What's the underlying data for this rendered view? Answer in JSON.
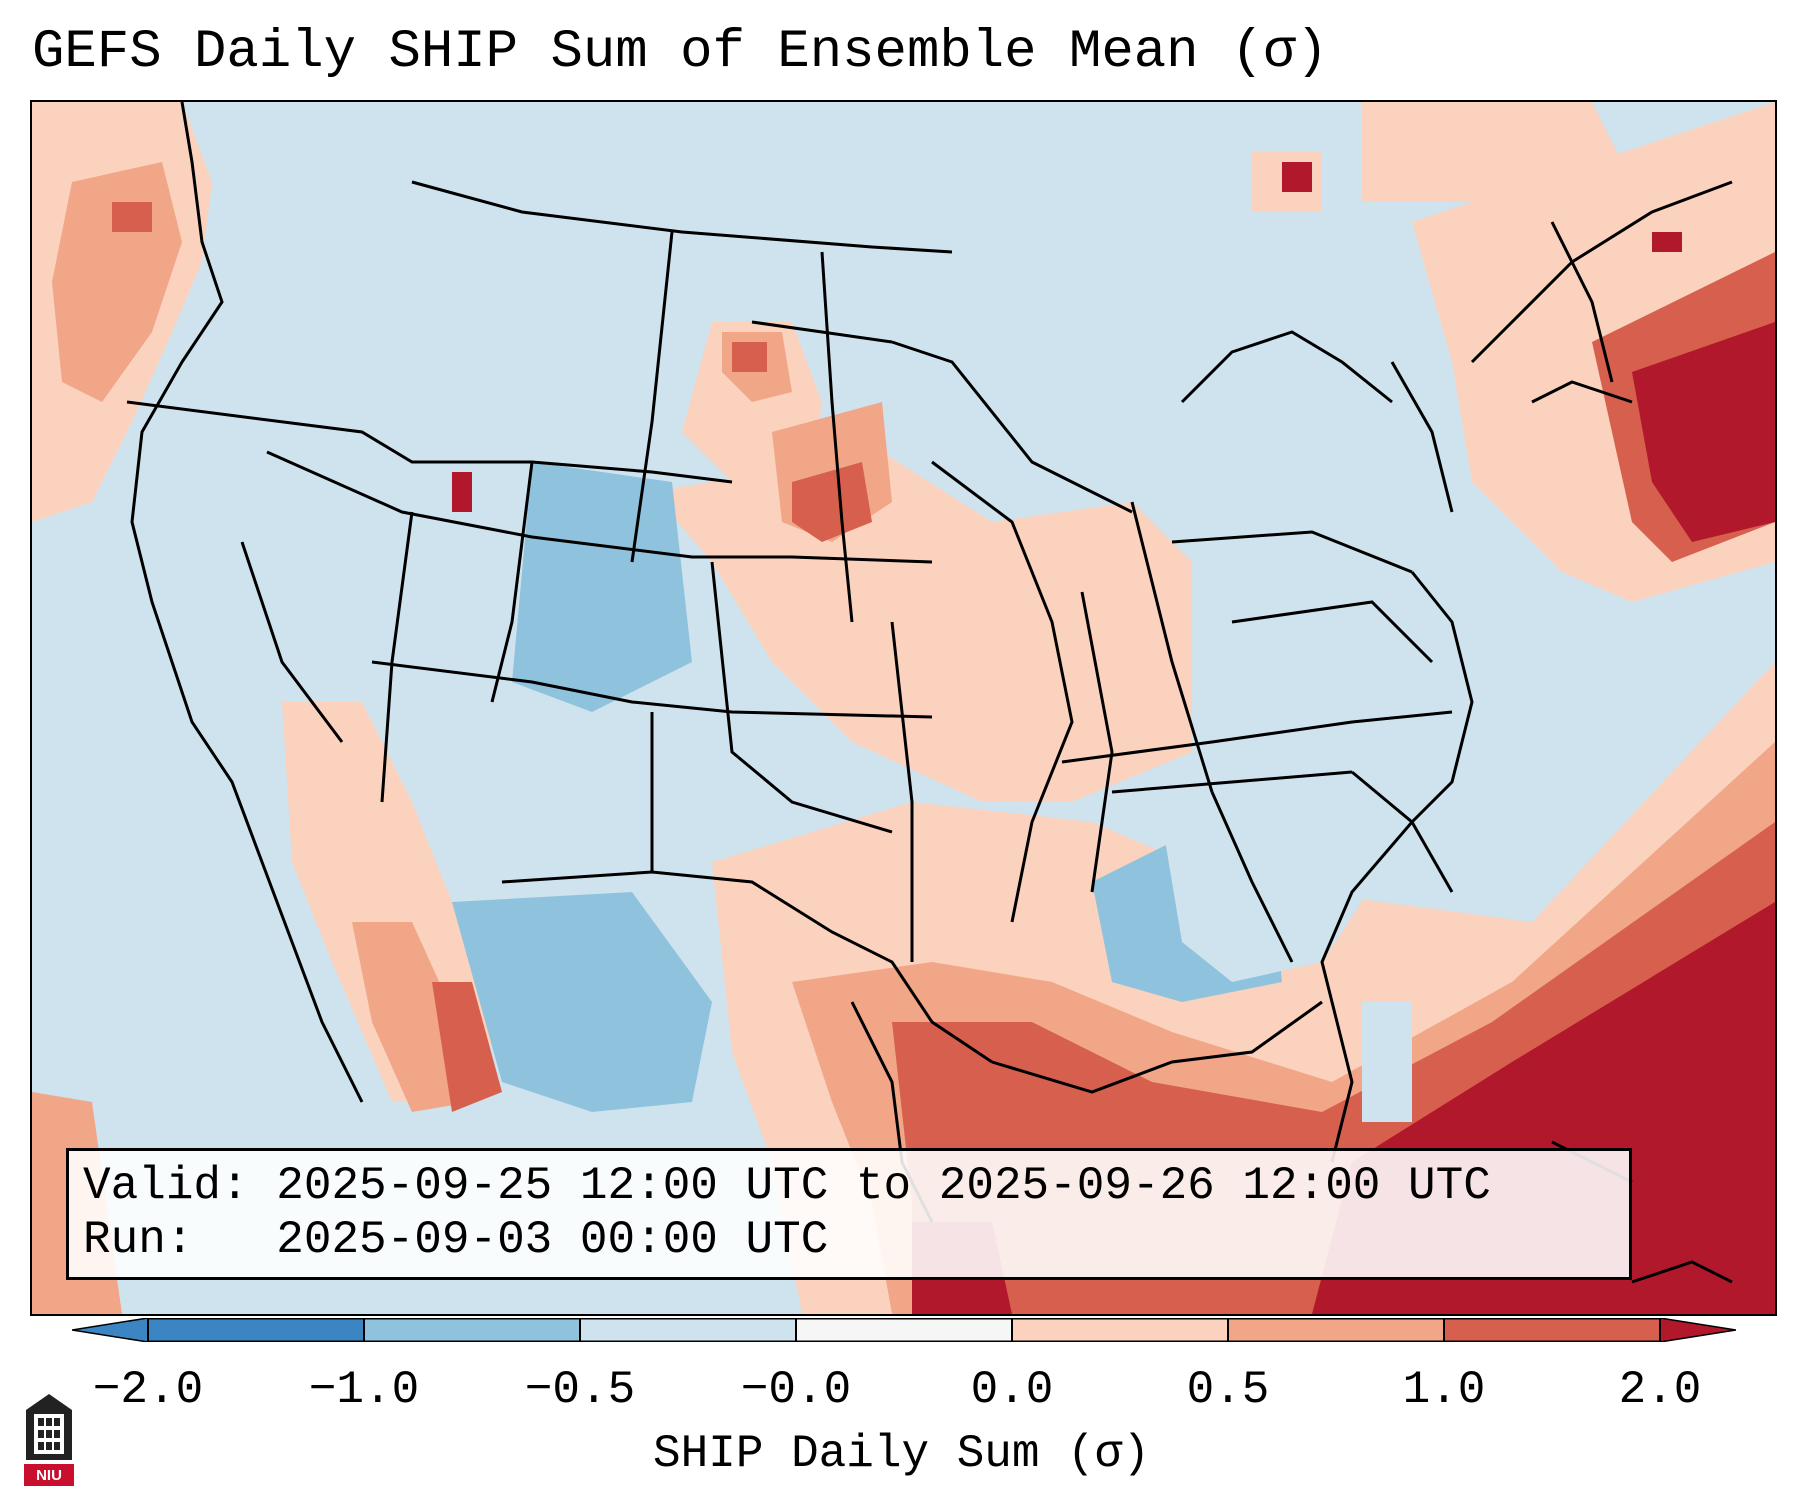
{
  "title": "GEFS Daily SHIP Sum of Ensemble Mean (σ)",
  "info": {
    "valid_line": "Valid: 2025-09-25 12:00 UTC to 2025-09-26 12:00 UTC",
    "run_line": "Run:   2025-09-03 00:00 UTC"
  },
  "colorbar": {
    "label": "SHIP Daily Sum (σ)",
    "ticks": [
      "−2.0",
      "−1.0",
      "−0.5",
      "−0.0",
      "0.0",
      "0.5",
      "1.0",
      "2.0"
    ],
    "colors": [
      "#3b86c2",
      "#8fc2dd",
      "#cfe3ef",
      "#f6f6f6",
      "#fbd2bd",
      "#f1a687",
      "#d6604d",
      "#b2182b"
    ]
  },
  "logo": {
    "text": "NIU"
  }
}
